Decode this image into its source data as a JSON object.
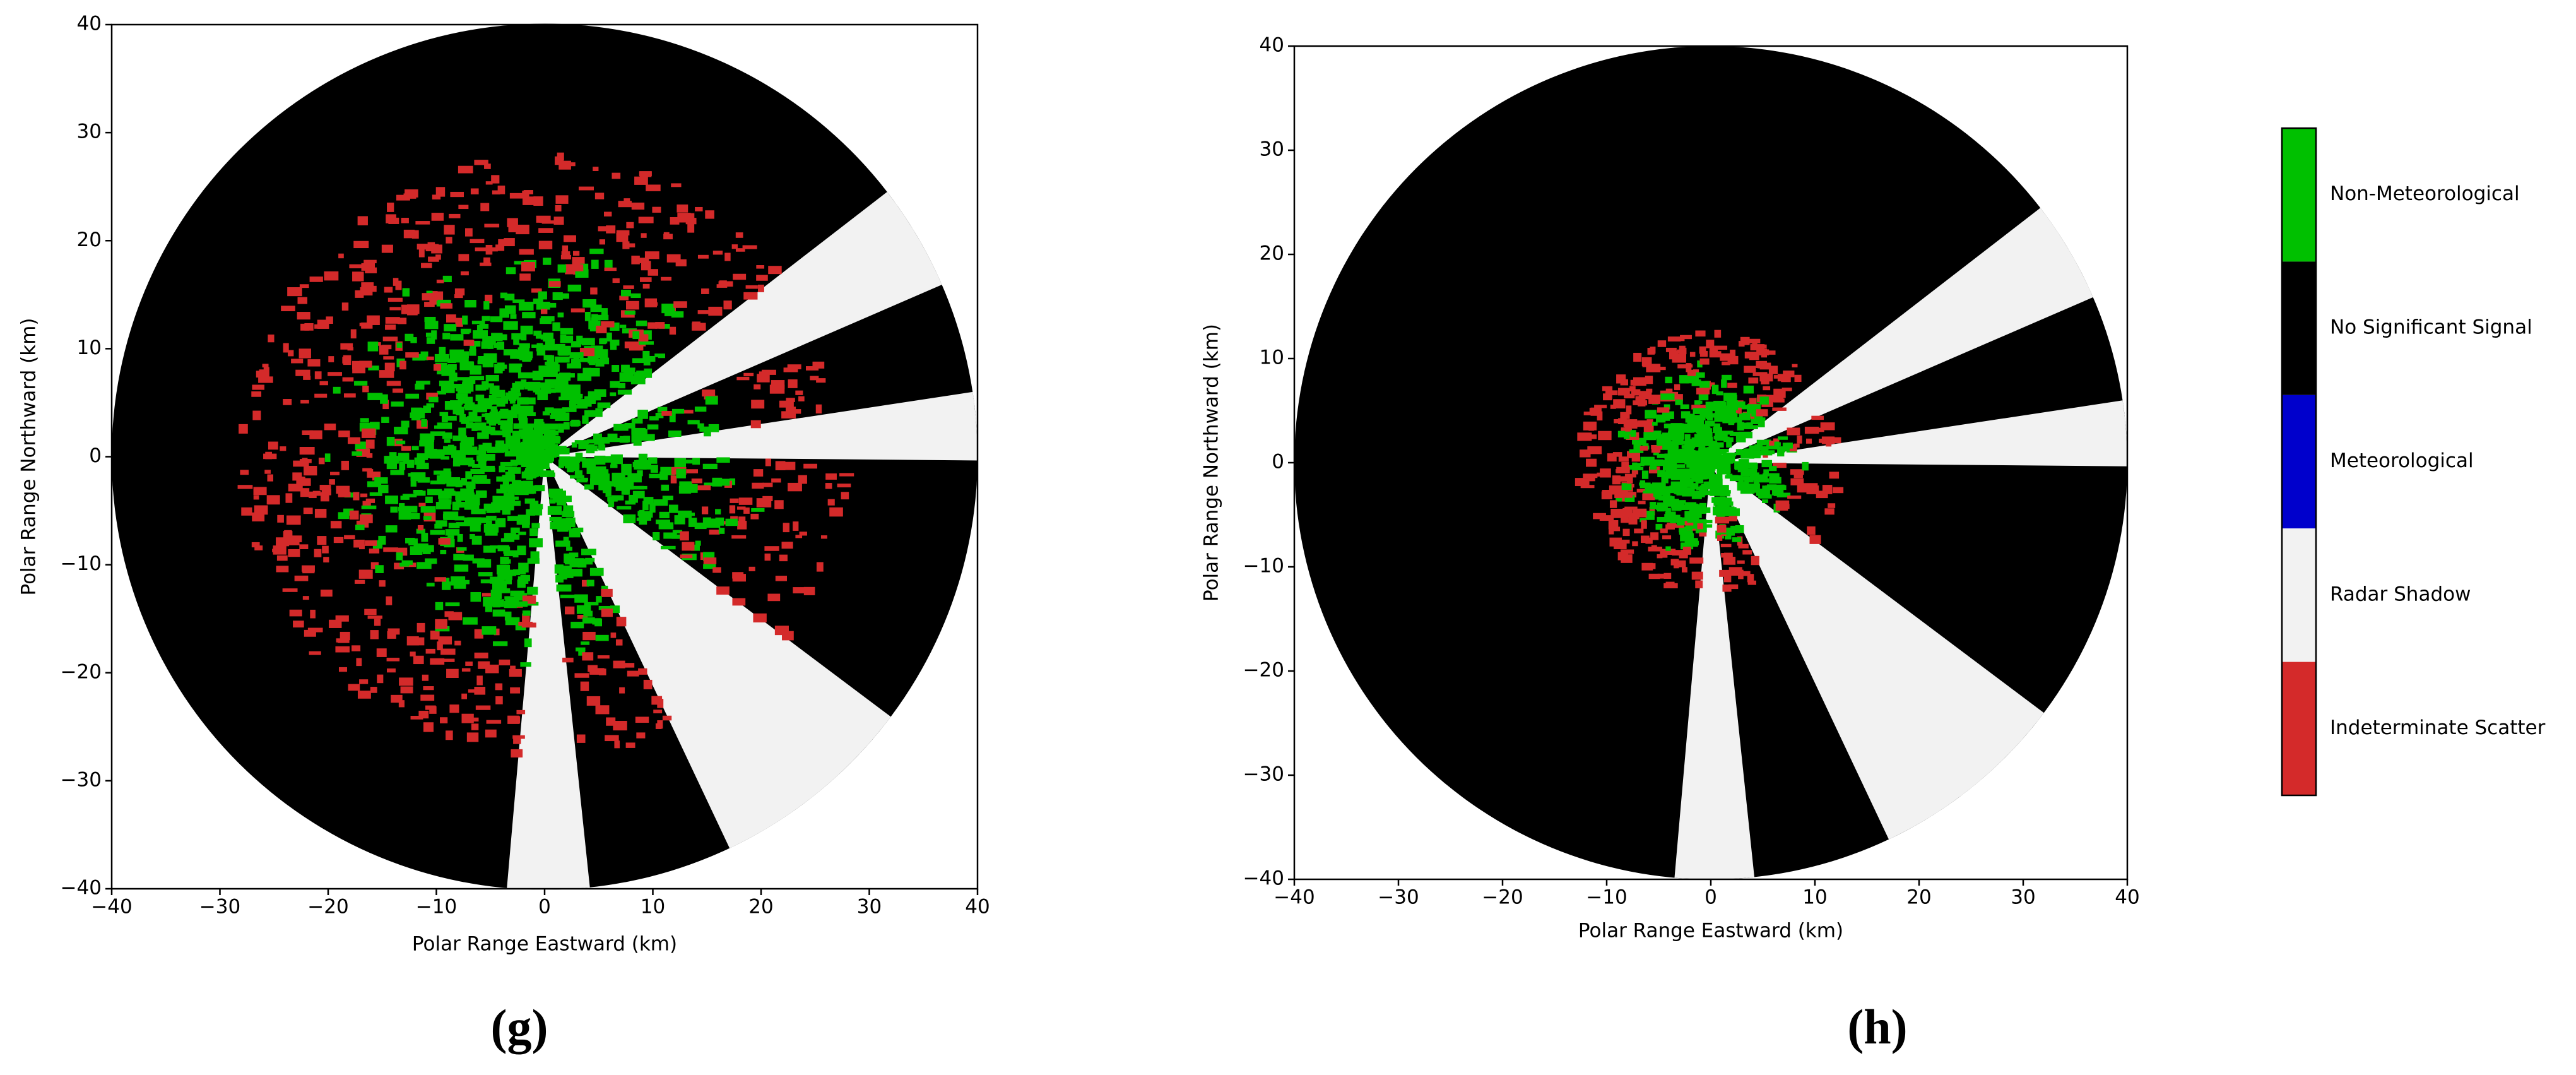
{
  "chart_data": [
    {
      "type": "radar-map",
      "caption": "(g)",
      "xlabel": "Polar Range Eastward (km)",
      "ylabel": "Polar Range Northward (km)",
      "xlim": [
        -40,
        40
      ],
      "ylim": [
        -40,
        40
      ],
      "xticks": [
        {
          "value": -40,
          "label": "−40"
        },
        {
          "value": -30,
          "label": "−30"
        },
        {
          "value": -20,
          "label": "−20"
        },
        {
          "value": -10,
          "label": "−10"
        },
        0,
        10,
        20,
        30,
        40
      ],
      "yticks": [
        {
          "value": -40,
          "label": "−40"
        },
        {
          "value": -30,
          "label": "−30"
        },
        {
          "value": -20,
          "label": "−20"
        },
        {
          "value": -10,
          "label": "−10"
        },
        0,
        10,
        20,
        30,
        40
      ]
    },
    {
      "type": "radar-map",
      "caption": "(h)",
      "xlabel": "Polar Range Eastward (km)",
      "ylabel": "Polar Range Northward (km)",
      "xlim": [
        -40,
        40
      ],
      "ylim": [
        -40,
        40
      ],
      "xticks": [
        {
          "value": -40,
          "label": "−40"
        },
        {
          "value": -30,
          "label": "−30"
        },
        {
          "value": -20,
          "label": "−20"
        },
        {
          "value": -10,
          "label": "−10"
        },
        0,
        10,
        20,
        30,
        40
      ],
      "yticks": [
        {
          "value": -40,
          "label": "−40"
        },
        {
          "value": -30,
          "label": "−30"
        },
        {
          "value": -20,
          "label": "−20"
        },
        {
          "value": -10,
          "label": "−10"
        },
        0,
        10,
        20,
        30,
        40
      ],
      "legend": {
        "categories": [
          "Non-Meteorological",
          "No Significant Signal",
          "Meteorological",
          "Radar Shadow",
          "Indeterminate Scatter"
        ],
        "colors": [
          "#00c000",
          "#000000",
          "#0000cc",
          "#f2f2f2",
          "#d42a2a"
        ]
      }
    }
  ]
}
